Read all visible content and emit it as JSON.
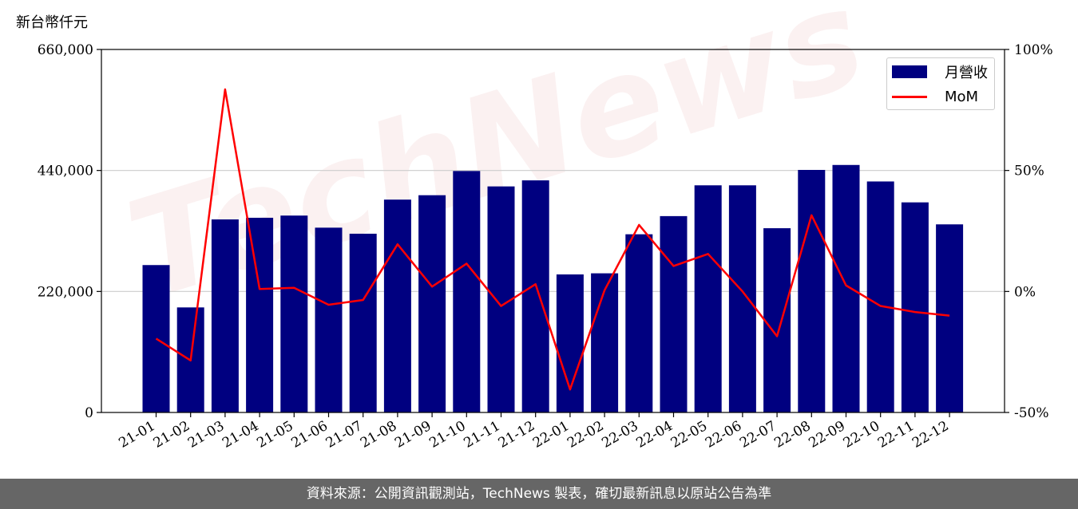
{
  "unit_label": "新台幣仟元",
  "watermark": "TechNews",
  "footer": "資料來源：公開資訊觀測站，TechNews 製表，確切最新訊息以原站公告為準",
  "colors": {
    "bar": "#000080",
    "line": "#ff0000",
    "grid": "#cccccc",
    "footer_bg": "#666666"
  },
  "chart_data": {
    "type": "bar",
    "categories": [
      "21-01",
      "21-02",
      "21-03",
      "21-04",
      "21-05",
      "21-06",
      "21-07",
      "21-08",
      "21-09",
      "21-10",
      "21-11",
      "21-12",
      "22-01",
      "22-02",
      "22-03",
      "22-04",
      "22-05",
      "22-06",
      "22-07",
      "22-08",
      "22-09",
      "22-10",
      "22-11",
      "22-12"
    ],
    "series": [
      {
        "name": "月營收",
        "type": "bar",
        "axis": "left",
        "values": [
          268000,
          191000,
          351000,
          354000,
          358000,
          336000,
          325000,
          387000,
          395000,
          439000,
          411000,
          422000,
          251000,
          253000,
          324000,
          357000,
          413000,
          413000,
          335000,
          441000,
          450000,
          420000,
          382000,
          342000
        ]
      },
      {
        "name": "MoM",
        "type": "line",
        "axis": "right",
        "values": [
          -19.5,
          -28.5,
          83.5,
          1.0,
          1.5,
          -5.5,
          -3.5,
          19.5,
          2.0,
          11.5,
          -6.0,
          3.0,
          -40.5,
          0.5,
          27.5,
          10.5,
          15.5,
          0.0,
          -18.5,
          31.5,
          2.5,
          -6.0,
          -8.5,
          -10.0
        ]
      }
    ],
    "y_left": {
      "ylim": [
        0,
        660000
      ],
      "ticks": [
        0,
        220000,
        440000,
        660000
      ],
      "tick_labels": [
        "0",
        "220,000",
        "440,000",
        "660,000"
      ]
    },
    "y_right": {
      "ylim": [
        -50,
        100
      ],
      "ticks": [
        -50,
        0,
        50,
        100
      ],
      "tick_labels": [
        "-50%",
        "0%",
        "50%",
        "100%"
      ]
    },
    "grid": "horizontal",
    "legend_position": "top-right"
  }
}
